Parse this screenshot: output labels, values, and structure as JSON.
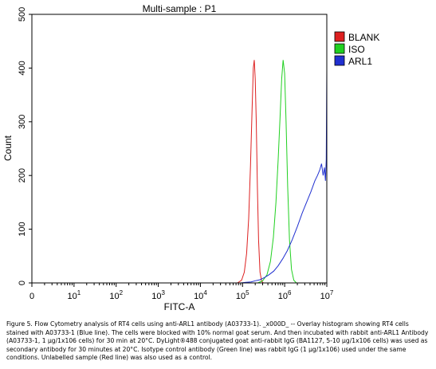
{
  "chart_data": {
    "type": "line",
    "title": "Multi-sample : P1",
    "xlabel": "FITC-A",
    "ylabel": "Count",
    "x_scale": "log",
    "xlim": [
      1,
      10000000
    ],
    "ylim": [
      0,
      500
    ],
    "x_ticks": [
      {
        "base": "0",
        "exp": ""
      },
      {
        "base": "10",
        "exp": "1"
      },
      {
        "base": "10",
        "exp": "2"
      },
      {
        "base": "10",
        "exp": "3"
      },
      {
        "base": "10",
        "exp": "4"
      },
      {
        "base": "10",
        "exp": "5"
      },
      {
        "base": "10",
        "exp": "6"
      },
      {
        "base": "10",
        "exp": "7"
      }
    ],
    "y_ticks": [
      "0",
      "100",
      "200",
      "300",
      "400",
      "500"
    ],
    "legend_position": "top-right",
    "series": [
      {
        "name": "BLANK",
        "color": "#dd2020",
        "x": [
          76000,
          95000,
          110000,
          125000,
          140000,
          155000,
          168000,
          180000,
          190000,
          200000,
          212000,
          225000,
          240000,
          260000,
          285000,
          310000
        ],
        "y": [
          0,
          5,
          20,
          55,
          120,
          220,
          320,
          400,
          415,
          380,
          300,
          180,
          80,
          20,
          3,
          0
        ]
      },
      {
        "name": "ISO",
        "color": "#20d020",
        "x": [
          230000,
          300000,
          380000,
          460000,
          540000,
          620000,
          700000,
          780000,
          850000,
          920000,
          1000000,
          1080000,
          1180000,
          1300000,
          1450000,
          1650000,
          1900000
        ],
        "y": [
          0,
          4,
          15,
          40,
          85,
          150,
          230,
          310,
          380,
          415,
          390,
          300,
          180,
          80,
          25,
          5,
          0
        ]
      },
      {
        "name": "ARL1",
        "color": "#2030d0",
        "x": [
          90000,
          120000,
          160000,
          200000,
          260000,
          330000,
          420000,
          550000,
          700000,
          900000,
          1150000,
          1500000,
          2000000,
          2600000,
          3300000,
          4200000,
          5200000,
          6000000,
          6800000,
          7500000,
          8200000,
          8800000,
          9300000,
          9700000,
          10000000
        ],
        "y": [
          0,
          1,
          2,
          4,
          6,
          10,
          15,
          22,
          32,
          45,
          60,
          80,
          105,
          130,
          150,
          170,
          190,
          200,
          210,
          222,
          200,
          215,
          190,
          230,
          395
        ]
      }
    ]
  },
  "caption": "Figure 5. Flow Cytometry analysis of RT4 cells using anti-ARL1 antibody (A03733-1). _x000D_ -- Overlay histogram showing RT4 cells stained with A03733-1 (Blue line). The cells were blocked with 10% normal goat serum. And then incubated with rabbit anti-ARL1 Antibody (A03733-1, 1 μg/1x106 cells) for 30 min at 20°C. DyLight®488 conjugated goat anti-rabbit IgG (BA1127, 5-10 μg/1x106 cells) was used as secondary antibody for 30 minutes at 20°C. Isotype control antibody (Green line) was rabbit IgG (1 μg/1x106) used under the same conditions. Unlabelled sample (Red line) was also used as a control."
}
